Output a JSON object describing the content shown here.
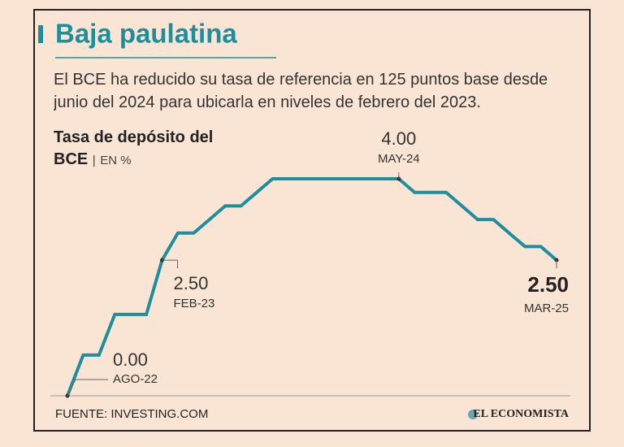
{
  "chart_data": {
    "type": "line",
    "title": "Baja paulatina",
    "subtitle": "El BCE ha reducido su tasa de referencia en 125 puntos base desde junio del 2024 para ubicarla en niveles de febrero del 2023.",
    "y_label": "Tasa de depósito del BCE",
    "y_unit": "EN %",
    "source": "FUENTE: INVESTING.COM",
    "brand": "EL ECONOMISTA",
    "color": "#1d8e9e",
    "ylim": [
      0,
      4
    ],
    "categories": [
      "AGO-22",
      null,
      null,
      null,
      null,
      null,
      "FEB-23",
      null,
      null,
      null,
      null,
      null,
      null,
      null,
      null,
      null,
      null,
      null,
      null,
      null,
      null,
      "MAY-24",
      null,
      null,
      null,
      null,
      null,
      null,
      null,
      null,
      null,
      "MAR-25"
    ],
    "values": [
      0,
      0.75,
      0.75,
      1.5,
      1.5,
      1.5,
      2.5,
      3.0,
      3.0,
      3.25,
      3.5,
      3.5,
      3.75,
      4.0,
      4.0,
      4.0,
      4.0,
      4.0,
      4.0,
      4.0,
      4.0,
      4.0,
      3.75,
      3.75,
      3.75,
      3.5,
      3.25,
      3.25,
      3.0,
      2.75,
      2.75,
      2.5
    ],
    "value_labels": [
      "0.00",
      null,
      null,
      null,
      null,
      null,
      "2.50",
      null,
      null,
      null,
      null,
      null,
      null,
      null,
      null,
      null,
      null,
      null,
      null,
      null,
      null,
      "4.00",
      null,
      null,
      null,
      null,
      null,
      null,
      null,
      null,
      null,
      "2.50"
    ]
  }
}
